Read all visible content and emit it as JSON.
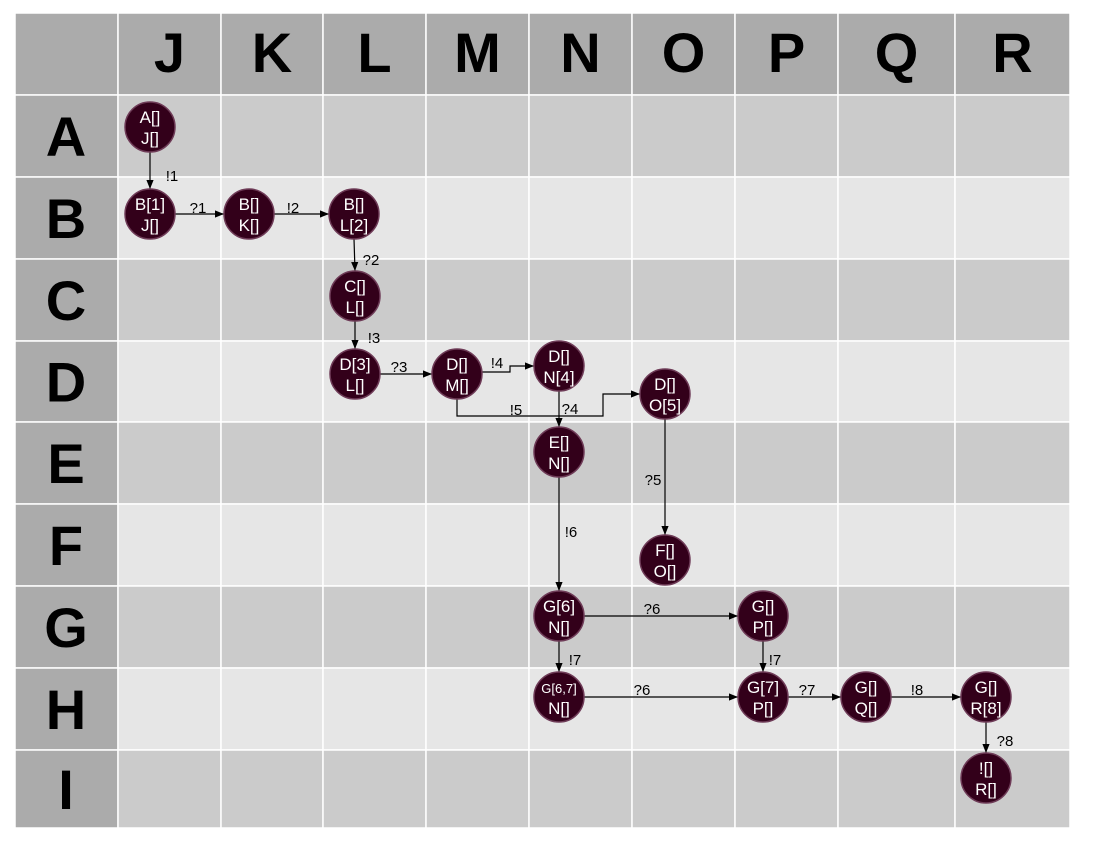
{
  "columns": [
    "",
    "J",
    "K",
    "L",
    "M",
    "N",
    "O",
    "P",
    "Q",
    "R"
  ],
  "rows": [
    "A",
    "B",
    "C",
    "D",
    "E",
    "F",
    "G",
    "H",
    "I"
  ],
  "colors": {
    "header_bg": "#ababab",
    "row_dark": "#cbcbcb",
    "row_light": "#e6e6e6",
    "grid_line": "#ffffff",
    "node_fill": "#33001a",
    "node_stroke": "#6e3b57",
    "node_text": "#ffffff",
    "edge": "#000000"
  },
  "nodes": [
    {
      "id": "AJ",
      "line1": "A[]",
      "line2": "J[]"
    },
    {
      "id": "BJ",
      "line1": "B[1]",
      "line2": "J[]"
    },
    {
      "id": "BK",
      "line1": "B[]",
      "line2": "K[]"
    },
    {
      "id": "BL",
      "line1": "B[]",
      "line2": "L[2]"
    },
    {
      "id": "CL",
      "line1": "C[]",
      "line2": "L[]"
    },
    {
      "id": "DL",
      "line1": "D[3]",
      "line2": "L[]"
    },
    {
      "id": "DM",
      "line1": "D[]",
      "line2": "M[]"
    },
    {
      "id": "DN",
      "line1": "D[]",
      "line2": "N[4]"
    },
    {
      "id": "DO",
      "line1": "D[]",
      "line2": "O[5]"
    },
    {
      "id": "EN",
      "line1": "E[]",
      "line2": "N[]"
    },
    {
      "id": "FO",
      "line1": "F[]",
      "line2": "O[]"
    },
    {
      "id": "GN",
      "line1": "G[6]",
      "line2": "N[]"
    },
    {
      "id": "GP",
      "line1": "G[]",
      "line2": "P[]"
    },
    {
      "id": "HN",
      "line1": "G[6,7]",
      "line2": "N[]",
      "small": true
    },
    {
      "id": "HP",
      "line1": "G[7]",
      "line2": "P[]"
    },
    {
      "id": "HQ",
      "line1": "G[]",
      "line2": "Q[]"
    },
    {
      "id": "HR",
      "line1": "G[]",
      "line2": "R[8]"
    },
    {
      "id": "IR",
      "line1": "![]",
      "line2": "R[]"
    }
  ],
  "edges": [
    {
      "from": "AJ",
      "to": "BJ",
      "label": "!1"
    },
    {
      "from": "BJ",
      "to": "BK",
      "label": "?1"
    },
    {
      "from": "BK",
      "to": "BL",
      "label": "!2"
    },
    {
      "from": "BL",
      "to": "CL",
      "label": "?2"
    },
    {
      "from": "CL",
      "to": "DL",
      "label": "!3"
    },
    {
      "from": "DL",
      "to": "DM",
      "label": "?3"
    },
    {
      "from": "DM",
      "to": "DN",
      "label": "!4"
    },
    {
      "from": "DM",
      "to": "DO",
      "label": "!5"
    },
    {
      "from": "DN",
      "to": "EN",
      "label": "?4"
    },
    {
      "from": "DO",
      "to": "FO",
      "label": "?5"
    },
    {
      "from": "EN",
      "to": "GN",
      "label": "!6"
    },
    {
      "from": "GN",
      "to": "GP",
      "label": "?6"
    },
    {
      "from": "GN",
      "to": "HN",
      "label": "!7"
    },
    {
      "from": "HN",
      "to": "HP",
      "label": "?6"
    },
    {
      "from": "GP",
      "to": "HP",
      "label": "!7"
    },
    {
      "from": "HP",
      "to": "HQ",
      "label": "?7"
    },
    {
      "from": "HQ",
      "to": "HR",
      "label": "!8"
    },
    {
      "from": "HR",
      "to": "IR",
      "label": "?8"
    }
  ]
}
